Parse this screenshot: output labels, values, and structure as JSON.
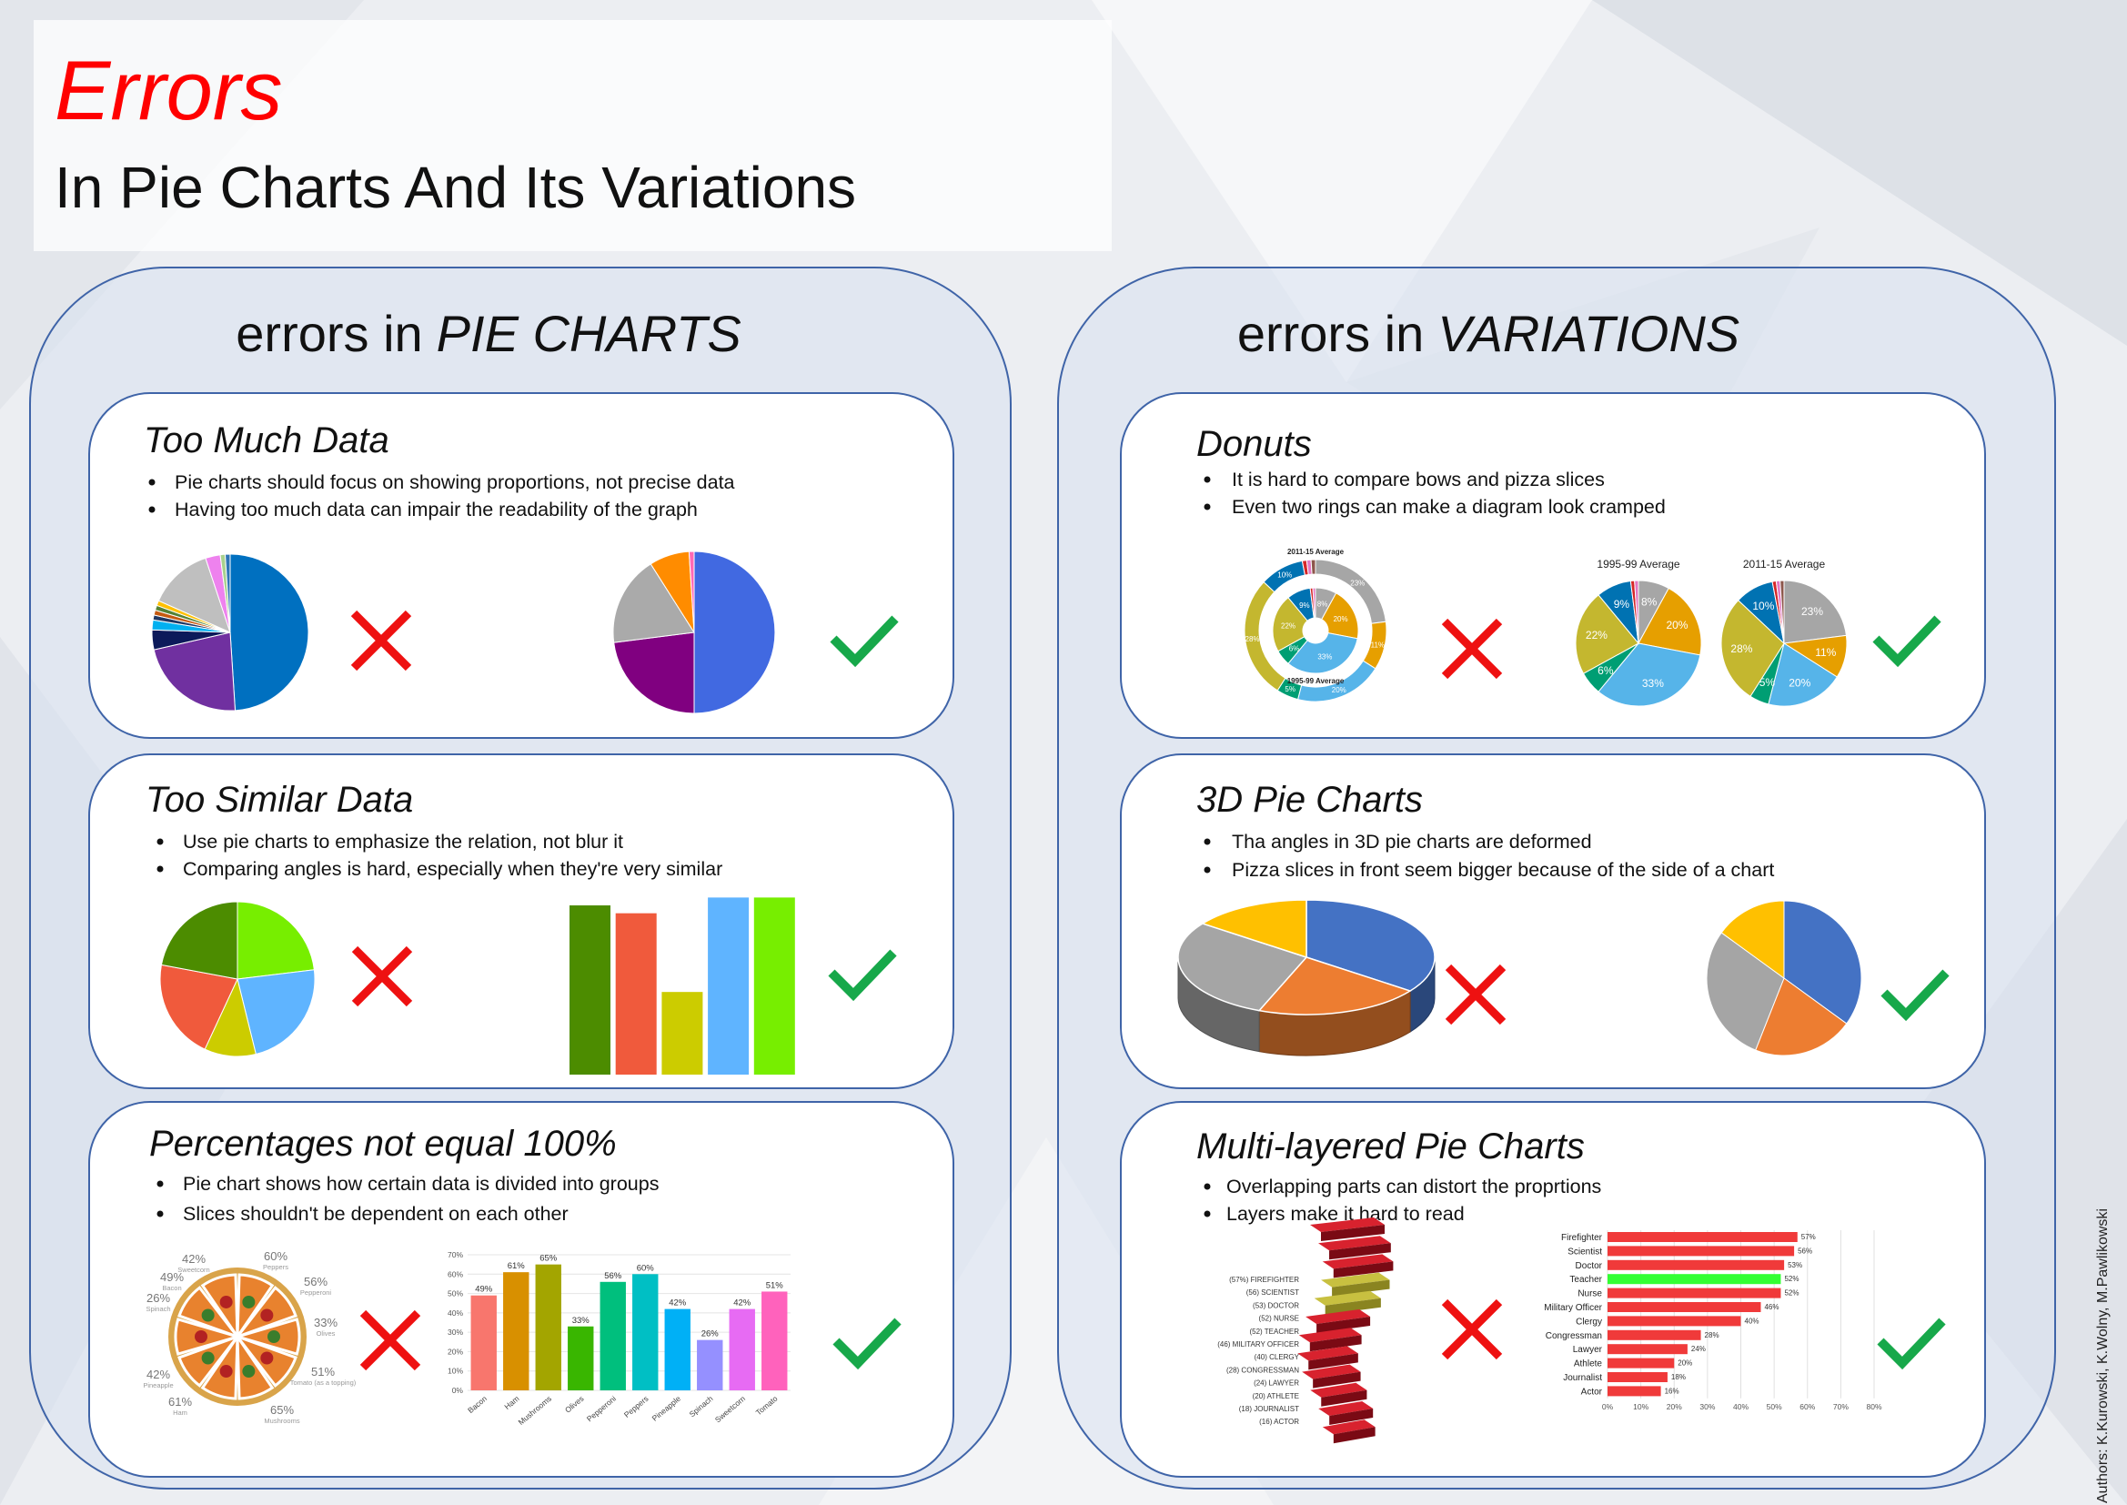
{
  "header": {
    "title": "Errors",
    "subtitle": "In Pie Charts And Its Variations"
  },
  "panels": [
    {
      "prefix": "errors in",
      "emphasis": "PIE CHARTS",
      "cards": [
        {
          "heading": "Too Much Data",
          "bullets": [
            "Pie charts should focus on showing proportions, not precise data",
            "Having too much data can impair the readability of the graph"
          ],
          "bad": {
            "values": [
              48,
              22,
              4,
              2,
              1,
              1,
              1,
              1,
              13,
              3,
              1,
              1
            ],
            "colors": [
              "#0070c0",
              "#7030a0",
              "#0c1a5a",
              "#00b0f0",
              "#203864",
              "#c55a11",
              "#548235",
              "#ffc000",
              "#bfbfbf",
              "#ee82ee",
              "#a9d18e",
              "#2e75b6"
            ]
          },
          "good": {
            "values": [
              50,
              23,
              18,
              8,
              1
            ],
            "colors": [
              "#4169e1",
              "#800080",
              "#aaaaaa",
              "#ff8c00",
              "#ff69b4"
            ]
          }
        },
        {
          "heading": "Too Similar Data",
          "bullets": [
            "Use pie charts to emphasize the relation, not blur it",
            "Comparing angles is hard, especially when they're very similar"
          ],
          "slices": {
            "values": [
              21.5,
              20.5,
              10.5,
              22.5,
              22.5
            ],
            "colors": [
              "#4c8c00",
              "#f05a3c",
              "#cccc00",
              "#5fb4ff",
              "#77ee00"
            ]
          }
        },
        {
          "heading": "Percentages not equal 100%",
          "bullets": [
            "Pie chart shows how certain data is divided into groups",
            "Slices shouldn't be dependent on each other"
          ],
          "pizza": [
            {
              "label": "42%",
              "name": "Sweetcorn"
            },
            {
              "label": "60%",
              "name": "Peppers"
            },
            {
              "label": "49%",
              "name": "Bacon"
            },
            {
              "label": "56%",
              "name": "Pepperoni"
            },
            {
              "label": "26%",
              "name": "Spinach"
            },
            {
              "label": "33%",
              "name": "Olives"
            },
            {
              "label": "42%",
              "name": "Pineapple"
            },
            {
              "label": "51%",
              "name": "Tomato (as a topping)"
            },
            {
              "label": "61%",
              "name": "Ham"
            },
            {
              "label": "65%",
              "name": "Mushrooms"
            }
          ],
          "bars": {
            "categories": [
              "Bacon",
              "Ham",
              "Mushrooms",
              "Olives",
              "Pepperoni",
              "Peppers",
              "Pineapple",
              "Spinach",
              "Sweetcorn",
              "Tomato"
            ],
            "values": [
              49,
              61,
              65,
              33,
              56,
              60,
              42,
              26,
              42,
              51
            ],
            "value_labels": [
              "49%",
              "61%",
              "65%",
              "33%",
              "56%",
              "60%",
              "42%",
              "26%",
              "42%",
              "51%"
            ],
            "colors": [
              "#f8766d",
              "#d89000",
              "#a3a500",
              "#39b600",
              "#00bf7d",
              "#00bfc4",
              "#00b0f6",
              "#9590ff",
              "#e76bf3",
              "#ff62bc"
            ],
            "ylim": [
              0,
              70
            ],
            "yticks": [
              {
                "value": 0,
                "label": "0%"
              },
              {
                "value": 10,
                "label": "10%"
              },
              {
                "value": 20,
                "label": "20%"
              },
              {
                "value": 30,
                "label": "30%"
              },
              {
                "value": 40,
                "label": "40%"
              },
              {
                "value": 50,
                "label": "50%"
              },
              {
                "value": 60,
                "label": "60%"
              },
              {
                "value": 70,
                "label": "70%"
              }
            ]
          }
        }
      ]
    },
    {
      "prefix": "errors in",
      "emphasis": "VARIATIONS",
      "cards": [
        {
          "heading": "Donuts",
          "bullets": [
            "It is hard to compare bows and pizza slices",
            "Even two rings can make a diagram look cramped"
          ],
          "colors": [
            "#a6a6a6",
            "#e69f00",
            "#56b4e9",
            "#009e73",
            "#c4b72f",
            "#0072b2",
            "#d62728",
            "#e377c2",
            "#8c564b"
          ],
          "pies": [
            {
              "title": "1995-99 Average",
              "values": [
                8,
                20,
                33,
                6,
                22,
                9,
                1,
                1
              ],
              "value_labels": [
                "8%",
                "20%",
                "33%",
                "6%",
                "22%",
                "9%",
                null,
                null
              ]
            },
            {
              "title": "2011-15 Average",
              "values": [
                23,
                11,
                20,
                5,
                28,
                10,
                1,
                1,
                1
              ],
              "value_labels": [
                "23%",
                "11%",
                "20%",
                "5%",
                "28%",
                "10%",
                null,
                null,
                null
              ]
            }
          ]
        },
        {
          "heading": "3D Pie Charts",
          "bullets": [
            "Tha angles in 3D pie charts are deformed",
            "Pizza slices in front seem bigger because of the side of a chart"
          ],
          "slices": {
            "values": [
              35,
              21,
              29,
              15
            ],
            "colors": [
              "#4472c4",
              "#ed7d31",
              "#a5a5a5",
              "#ffc000"
            ]
          }
        },
        {
          "heading": "Multi-layered Pie Charts",
          "bullets": [
            "Overlapping parts can distort the proprtions",
            "Layers make it hard to read"
          ],
          "layered": [
            "(57%) FIREFIGHTER",
            "(56) SCIENTIST",
            "(53) DOCTOR",
            "(52) NURSE",
            "(52) TEACHER",
            "(46) MILITARY OFFICER",
            "(40) CLERGY",
            "(28) CONGRESSMAN",
            "(24) LAWYER",
            "(20) ATHLETE",
            "(18) JOURNALIST",
            "(16) ACTOR"
          ],
          "bars": {
            "categories": [
              "Firefighter",
              "Scientist",
              "Doctor",
              "Teacher",
              "Nurse",
              "Military Officer",
              "Clergy",
              "Congressman",
              "Lawyer",
              "Athlete",
              "Journalist",
              "Actor"
            ],
            "values": [
              57,
              56,
              53,
              52,
              52,
              46,
              40,
              28,
              24,
              20,
              18,
              16
            ],
            "value_labels": [
              "57%",
              "56%",
              "53%",
              "52%",
              "52%",
              "46%",
              "40%",
              "28%",
              "24%",
              "20%",
              "18%",
              "16%"
            ],
            "colors": [
              "#f03a3a",
              "#f03a3a",
              "#f03a3a",
              "#33ff33",
              "#f03a3a",
              "#f03a3a",
              "#f03a3a",
              "#f03a3a",
              "#f03a3a",
              "#f03a3a",
              "#f03a3a",
              "#f03a3a"
            ],
            "xlim": [
              0,
              80
            ],
            "xticks": [
              {
                "value": 0,
                "label": "0%"
              },
              {
                "value": 10,
                "label": "10%"
              },
              {
                "value": 20,
                "label": "20%"
              },
              {
                "value": 30,
                "label": "30%"
              },
              {
                "value": 40,
                "label": "40%"
              },
              {
                "value": 50,
                "label": "50%"
              },
              {
                "value": 60,
                "label": "60%"
              },
              {
                "value": 70,
                "label": "70%"
              },
              {
                "value": 80,
                "label": "80%"
              }
            ]
          }
        }
      ]
    }
  ],
  "authors": "Authors: K.Kurowski, K.Wolny, M.Pawlikowski"
}
